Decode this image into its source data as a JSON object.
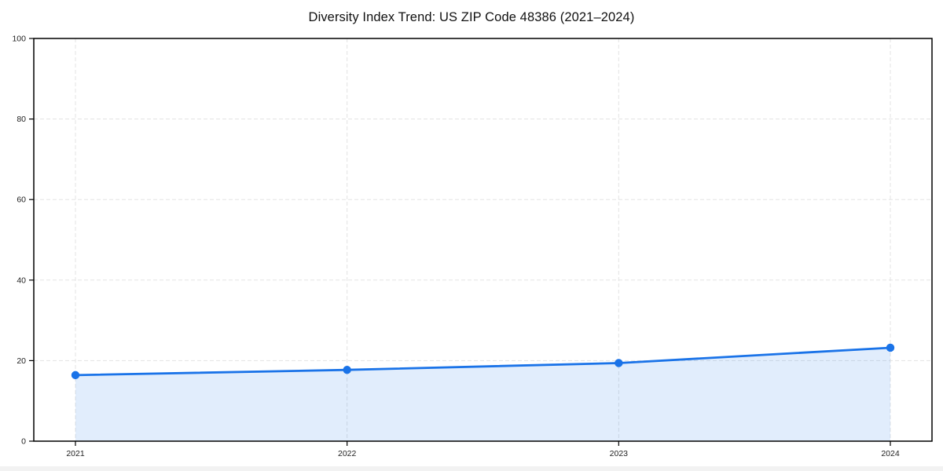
{
  "chart": {
    "title": "Diversity Index Trend: US ZIP Code 48386 (2021–2024)"
  },
  "colors": {
    "line": "#1a73e8",
    "fill_opacity": 0.13,
    "grid": "#e3e3e3",
    "axis": "#000000",
    "text": "#222222",
    "title_text": "#111111"
  },
  "chart_data": {
    "type": "area",
    "title": "Diversity Index Trend: US ZIP Code 48386 (2021–2024)",
    "x": [
      2021,
      2022,
      2023,
      2024
    ],
    "xticklabels": [
      "2021",
      "2022",
      "2023",
      "2024"
    ],
    "series": [
      {
        "name": "Diversity Index",
        "values": [
          16.4,
          17.7,
          19.4,
          23.2
        ]
      }
    ],
    "xlabel": "",
    "ylabel": "",
    "ylim": [
      0,
      100
    ],
    "yticks": [
      0,
      20,
      40,
      60,
      80,
      100
    ],
    "grid": true,
    "grid_style": "dashed",
    "legend": false,
    "marker": "circle"
  }
}
